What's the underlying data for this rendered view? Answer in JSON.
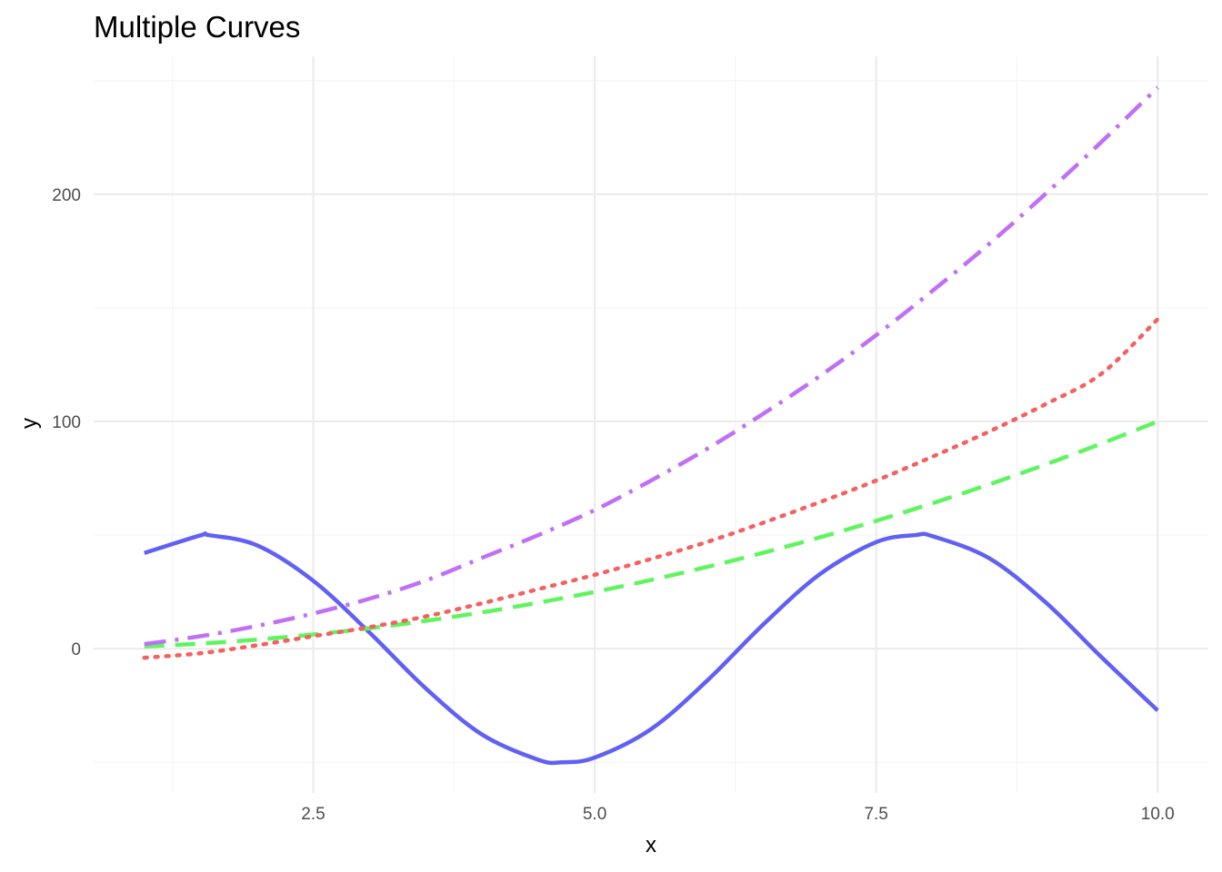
{
  "chart_data": {
    "type": "line",
    "title": "Multiple Curves",
    "xlabel": "x",
    "ylabel": "y",
    "xlim": [
      0.55,
      10.45
    ],
    "ylim": [
      -63.5,
      260.7
    ],
    "x_ticks": [
      2.5,
      5.0,
      7.5,
      10.0
    ],
    "x_tick_labels": [
      "2.5",
      "5.0",
      "7.5",
      "10.0"
    ],
    "x_minor_ticks": [
      1.25,
      3.75,
      6.25,
      8.75
    ],
    "y_ticks": [
      0,
      100,
      200
    ],
    "y_tick_labels": [
      "0",
      "100",
      "200"
    ],
    "y_minor_ticks": [
      -50,
      50,
      150,
      250
    ],
    "grid": true,
    "legend": "none",
    "series": [
      {
        "color": "#6060f5",
        "dash": "solid",
        "x": [
          1.0,
          1.5,
          1.57,
          2.0,
          2.5,
          3.0,
          3.5,
          4.0,
          4.5,
          4.71,
          5.0,
          5.5,
          6.0,
          6.5,
          7.0,
          7.5,
          7.85,
          8.0,
          8.5,
          9.0,
          9.5,
          10.0
        ],
        "y": [
          42.1,
          49.9,
          50.0,
          45.5,
          29.9,
          7.1,
          -17.5,
          -37.8,
          -48.9,
          -50.0,
          -47.9,
          -35.4,
          -14.0,
          10.8,
          32.8,
          46.9,
          50.0,
          49.5,
          39.9,
          20.6,
          -3.7,
          -27.2
        ]
      },
      {
        "color": "#60f560",
        "dash": "dashed",
        "x": [
          1.0,
          1.5,
          2.0,
          2.5,
          3.0,
          3.5,
          4.0,
          4.5,
          5.0,
          5.5,
          6.0,
          6.5,
          7.0,
          7.5,
          8.0,
          8.5,
          9.0,
          9.5,
          10.0
        ],
        "y": [
          1.0,
          2.25,
          4.0,
          6.25,
          9.0,
          12.25,
          16.0,
          20.25,
          25.0,
          30.25,
          36.0,
          42.25,
          49.0,
          56.25,
          64.0,
          72.25,
          81.0,
          90.25,
          100.0
        ]
      },
      {
        "color": "#f56060",
        "dash": "dotted",
        "x": [
          1.0,
          1.5,
          2.0,
          2.5,
          3.0,
          3.5,
          4.0,
          4.5,
          5.0,
          5.5,
          6.0,
          6.5,
          7.0,
          7.5,
          8.0,
          8.5,
          9.0,
          9.5,
          10.0
        ],
        "y": [
          -4.0,
          -2.0,
          1.5,
          5.5,
          9.5,
          14.2,
          20.0,
          26.2,
          32.5,
          39.5,
          47.0,
          55.5,
          64.5,
          74.0,
          84.5,
          95.5,
          107.5,
          121.0,
          145.0
        ]
      },
      {
        "color": "#c070f5",
        "dash": "dashdot",
        "x": [
          1.0,
          1.5,
          2.0,
          2.5,
          3.0,
          3.5,
          4.0,
          4.5,
          5.0,
          5.5,
          6.0,
          6.5,
          7.0,
          7.5,
          8.0,
          8.5,
          9.0,
          9.5,
          10.0
        ],
        "y": [
          2.0,
          5.5,
          10.0,
          15.5,
          22.0,
          30.0,
          40.0,
          50.0,
          61.0,
          74.0,
          88.0,
          103.5,
          120.0,
          138.0,
          157.5,
          178.0,
          200.0,
          223.0,
          247.0
        ]
      }
    ]
  }
}
